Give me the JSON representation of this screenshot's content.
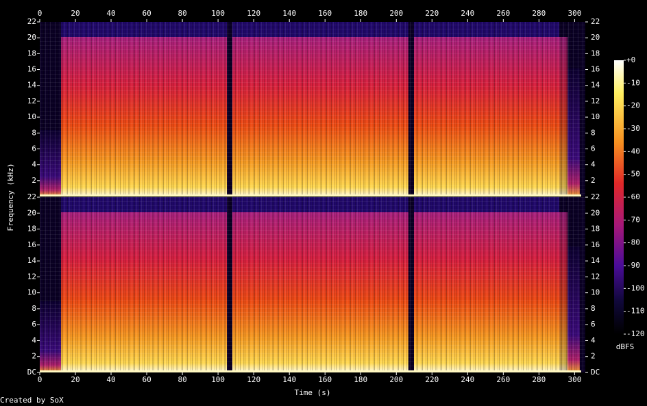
{
  "chart_data": {
    "type": "spectrogram",
    "x_label": "Time (s)",
    "y_label": "Frequency (kHz)",
    "xlim": [
      0,
      306
    ],
    "xticks": [
      0,
      20,
      40,
      60,
      80,
      100,
      120,
      140,
      160,
      180,
      200,
      220,
      240,
      260,
      280,
      300
    ],
    "channels": [
      {
        "ylim": [
          0,
          22
        ],
        "yticks": [
          2,
          4,
          6,
          8,
          10,
          12,
          14,
          16,
          18,
          20,
          22
        ]
      },
      {
        "ylim": [
          0,
          22
        ],
        "yticks": [
          {
            "value": 0,
            "label": "DC"
          },
          2,
          4,
          6,
          8,
          10,
          12,
          14,
          16,
          18,
          20,
          22
        ]
      }
    ],
    "colorbar": {
      "label": "dBFS",
      "lim": [
        -120,
        0
      ],
      "ticks": [
        {
          "value": 0,
          "label": "+0"
        },
        -10,
        -20,
        -30,
        -40,
        -50,
        -60,
        -70,
        -80,
        -90,
        -100,
        -110,
        -120
      ]
    }
  },
  "footer": "Created by SoX"
}
